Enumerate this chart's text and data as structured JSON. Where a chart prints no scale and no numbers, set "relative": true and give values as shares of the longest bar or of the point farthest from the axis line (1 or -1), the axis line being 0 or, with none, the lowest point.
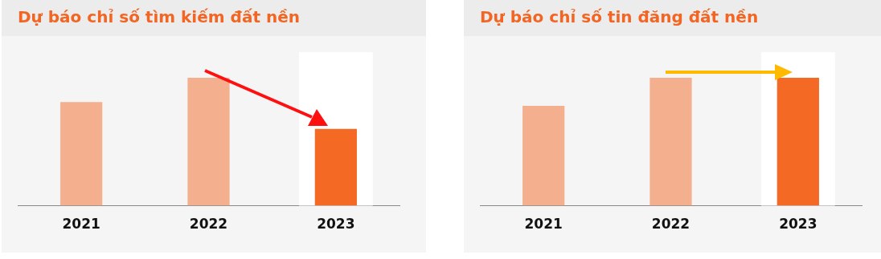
{
  "chart_data": [
    {
      "type": "bar",
      "title": "Dự báo chỉ số tìm kiếm đất nền",
      "categories": [
        "2021",
        "2022",
        "2023"
      ],
      "relative": true,
      "colors": [
        "#f4b08e",
        "#f4b08e",
        "#f46a25"
      ],
      "values": [
        0.81,
        1,
        0.6
      ],
      "bands": [
        {
          "axis": "x",
          "from": "2023",
          "to": "2023",
          "color": "#ffffff"
        }
      ],
      "grid": false,
      "legend": false
    },
    {
      "type": "bar",
      "title": "Dự báo chỉ số tin đăng đất nền",
      "categories": [
        "2021",
        "2022",
        "2023"
      ],
      "relative": true,
      "colors": [
        "#f4b08e",
        "#f4b08e",
        "#f46a25"
      ],
      "values": [
        0.78,
        1,
        1
      ],
      "bands": [
        {
          "axis": "x",
          "from": "2023",
          "to": "2023",
          "color": "#ffffff"
        }
      ],
      "grid": false,
      "legend": false
    }
  ]
}
